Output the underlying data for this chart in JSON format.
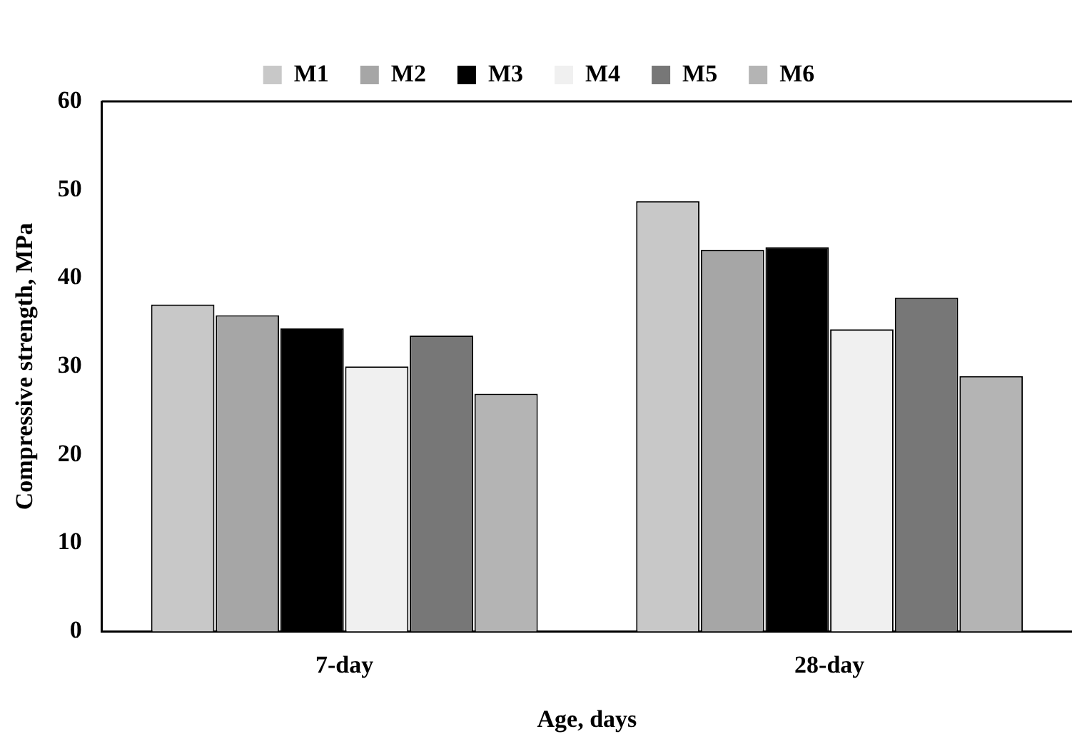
{
  "chart_data": {
    "type": "bar",
    "xlabel": "Age, days",
    "ylabel": "Compressive strength, MPa",
    "categories": [
      "7-day",
      "28-day"
    ],
    "series": [
      {
        "name": "M1",
        "color": "#c8c8c8",
        "values": [
          37.0,
          48.7
        ]
      },
      {
        "name": "M2",
        "color": "#a6a6a6",
        "values": [
          35.8,
          43.2
        ]
      },
      {
        "name": "M3",
        "color": "#000000",
        "values": [
          34.3,
          43.5
        ]
      },
      {
        "name": "M4",
        "color": "#f0f0f0",
        "values": [
          30.0,
          34.2
        ]
      },
      {
        "name": "M5",
        "color": "#777777",
        "values": [
          33.5,
          37.8
        ]
      },
      {
        "name": "M6",
        "color": "#b4b4b4",
        "values": [
          26.9,
          28.9
        ]
      }
    ],
    "ylim": [
      0,
      60
    ],
    "yticks": [
      0,
      10,
      20,
      30,
      40,
      50,
      60
    ],
    "grid": false,
    "legend": "top"
  }
}
